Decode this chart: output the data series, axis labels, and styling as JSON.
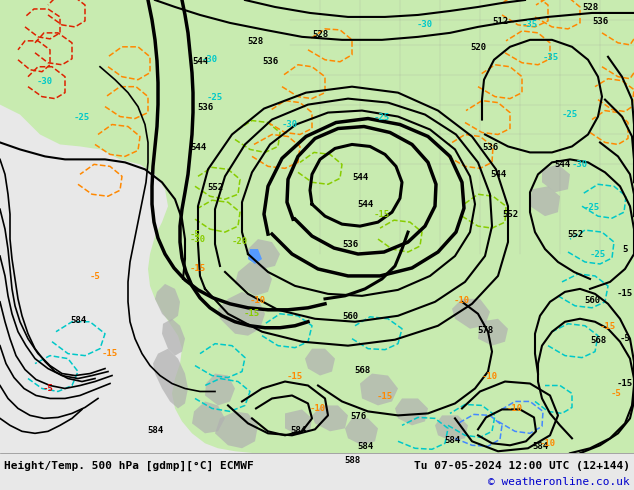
{
  "title_left": "Height/Temp. 500 hPa [gdmp][°C] ECMWF",
  "title_right": "Tu 07-05-2024 12:00 UTC (12+144)",
  "copyright": "© weatheronline.co.uk",
  "bg_color": "#e8e8e8",
  "fig_width": 6.34,
  "fig_height": 4.9,
  "dpi": 100,
  "bottom_bar_color": "#f0f0f0",
  "copyright_color": "#0000cc",
  "green_land": "#c8ebb0",
  "gray_terrain": "#b0b0b0",
  "ocean_color": "#e0e0e0"
}
